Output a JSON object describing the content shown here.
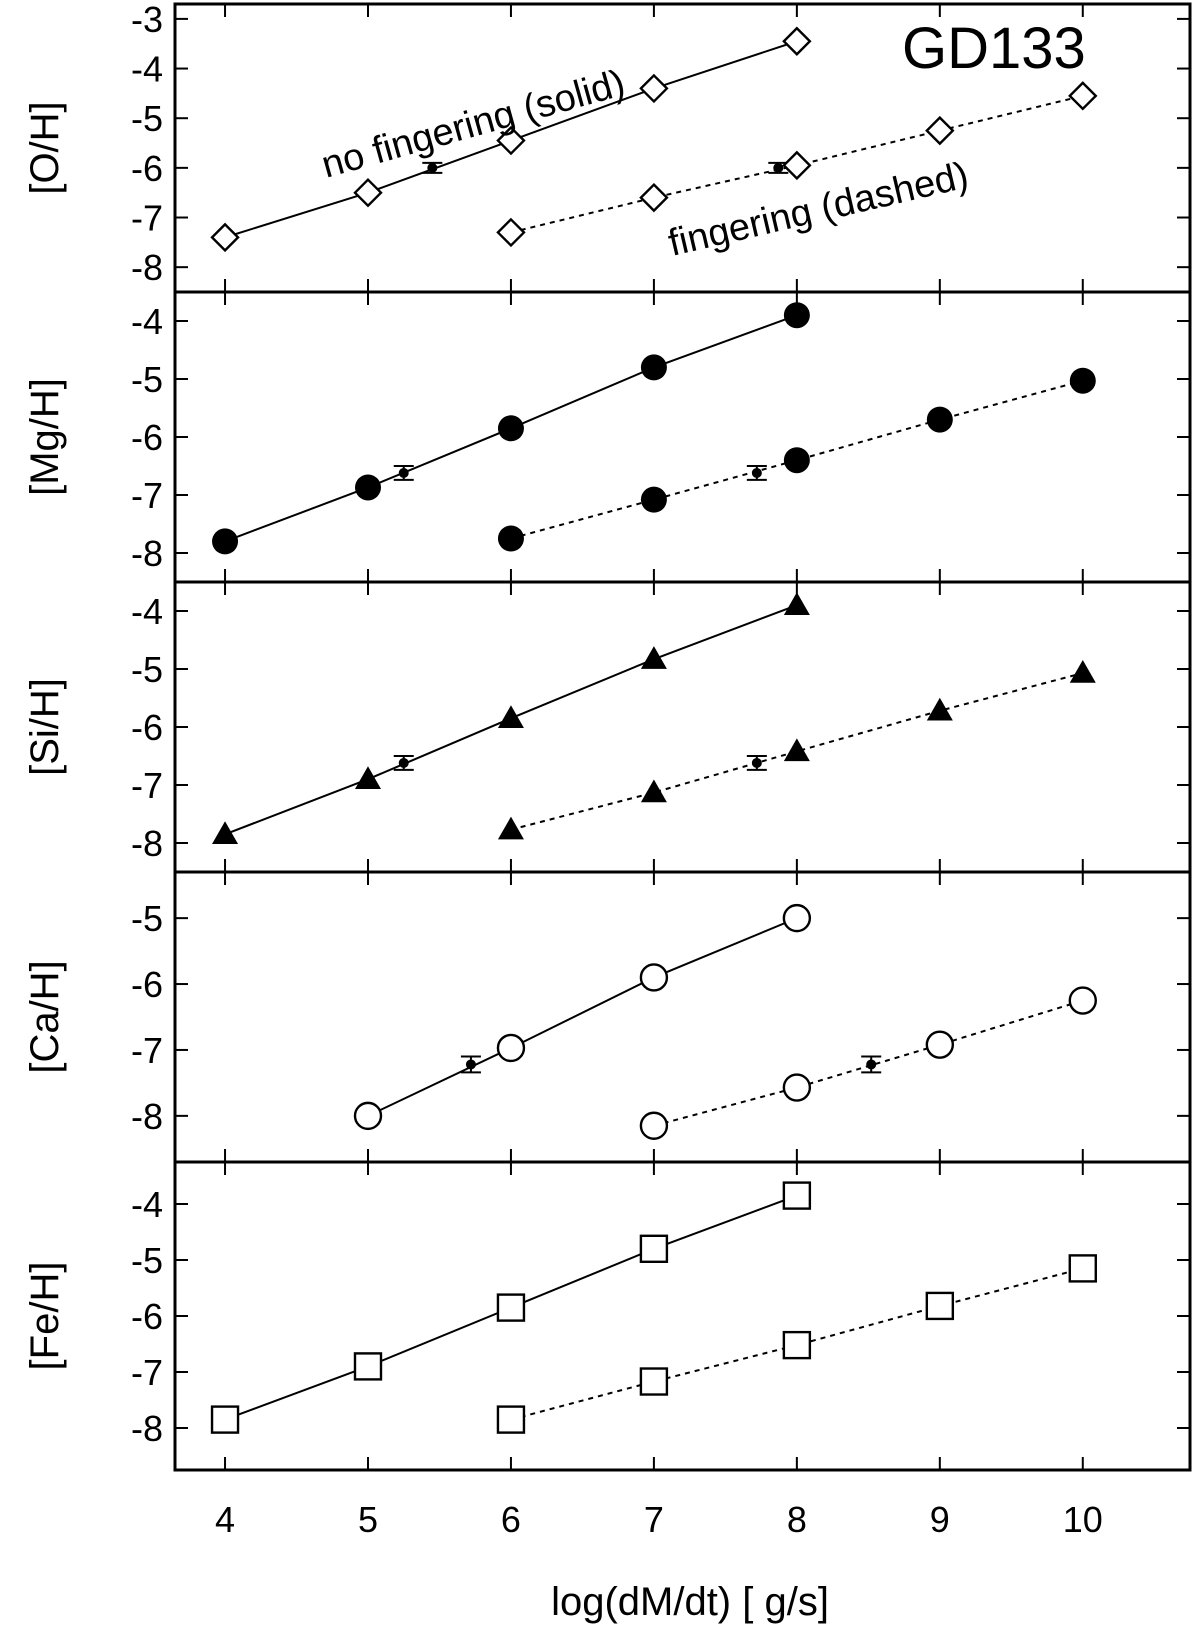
{
  "chart_data": {
    "type": "scatter",
    "title": "GD133",
    "xlabel": "log(dM/dt) [ g/s]",
    "xlim": [
      3.65,
      10.75
    ],
    "xticks": [
      "4",
      "5",
      "6",
      "7",
      "8",
      "9",
      "10"
    ],
    "xtick_values": [
      4,
      5,
      6,
      7,
      8,
      9,
      10
    ],
    "legend": "none",
    "grid": false,
    "annotations": {
      "solid": "no fingering (solid)",
      "dashed": "fingering (dashed)"
    },
    "panels": [
      {
        "ylabel": "[O/H]",
        "ylim": [
          -8.5,
          -2.7
        ],
        "yticks": [
          "-8",
          "-7",
          "-6",
          "-5",
          "-4",
          "-3"
        ],
        "ytick_values": [
          -8,
          -7,
          -6,
          -5,
          -4,
          -3
        ],
        "marker": "diamond-open",
        "series": [
          {
            "line": "solid",
            "x": [
              4,
              5,
              6,
              7,
              8
            ],
            "y": [
              -7.4,
              -6.5,
              -5.45,
              -4.4,
              -3.45
            ]
          },
          {
            "line": "dashed",
            "x": [
              6,
              7,
              8,
              9,
              10
            ],
            "y": [
              -7.3,
              -6.6,
              -5.95,
              -5.25,
              -4.55
            ]
          }
        ],
        "observed": [
          {
            "x": 5.45,
            "y": -6.0,
            "yerr": 0.1,
            "xerr": 0.07
          },
          {
            "x": 7.87,
            "y": -6.0,
            "yerr": 0.1,
            "xerr": 0.07
          }
        ]
      },
      {
        "ylabel": "[Mg/H]",
        "ylim": [
          -8.5,
          -3.5
        ],
        "yticks": [
          "-8",
          "-7",
          "-6",
          "-5",
          "-4"
        ],
        "ytick_values": [
          -8,
          -7,
          -6,
          -5,
          -4
        ],
        "marker": "circle-filled",
        "series": [
          {
            "line": "solid",
            "x": [
              4,
              5,
              6,
              7,
              8
            ],
            "y": [
              -7.8,
              -6.87,
              -5.85,
              -4.8,
              -3.9
            ]
          },
          {
            "line": "dashed",
            "x": [
              6,
              7,
              8,
              9,
              10
            ],
            "y": [
              -7.75,
              -7.08,
              -6.4,
              -5.7,
              -5.03
            ]
          }
        ],
        "observed": [
          {
            "x": 5.25,
            "y": -6.62,
            "yerr": 0.12,
            "xerr": 0.07
          },
          {
            "x": 7.72,
            "y": -6.62,
            "yerr": 0.12,
            "xerr": 0.07
          }
        ]
      },
      {
        "ylabel": "[Si/H]",
        "ylim": [
          -8.5,
          -3.5
        ],
        "yticks": [
          "-8",
          "-7",
          "-6",
          "-5",
          "-4"
        ],
        "ytick_values": [
          -8,
          -7,
          -6,
          -5,
          -4
        ],
        "marker": "triangle-filled",
        "series": [
          {
            "line": "solid",
            "x": [
              4,
              5,
              6,
              7,
              8
            ],
            "y": [
              -7.85,
              -6.9,
              -5.85,
              -4.83,
              -3.9
            ]
          },
          {
            "line": "dashed",
            "x": [
              6,
              7,
              8,
              9,
              10
            ],
            "y": [
              -7.77,
              -7.13,
              -6.42,
              -5.72,
              -5.07
            ]
          }
        ],
        "observed": [
          {
            "x": 5.25,
            "y": -6.62,
            "yerr": 0.12,
            "xerr": 0.07
          },
          {
            "x": 7.72,
            "y": -6.62,
            "yerr": 0.12,
            "xerr": 0.07
          }
        ]
      },
      {
        "ylabel": "[Ca/H]",
        "ylim": [
          -8.7,
          -4.3
        ],
        "yticks": [
          "-8",
          "-7",
          "-6",
          "-5"
        ],
        "ytick_values": [
          -8,
          -7,
          -6,
          -5
        ],
        "marker": "circle-open",
        "series": [
          {
            "line": "solid",
            "x": [
              5,
              6,
              7,
              8
            ],
            "y": [
              -8.0,
              -6.97,
              -5.9,
              -5.0
            ]
          },
          {
            "line": "dashed",
            "x": [
              7,
              8,
              9,
              10
            ],
            "y": [
              -8.15,
              -7.57,
              -6.92,
              -6.25
            ]
          }
        ],
        "observed": [
          {
            "x": 5.72,
            "y": -7.22,
            "yerr": 0.12,
            "xerr": 0.07
          },
          {
            "x": 8.52,
            "y": -7.22,
            "yerr": 0.12,
            "xerr": 0.07
          }
        ]
      },
      {
        "ylabel": "[Fe/H]",
        "ylim": [
          -8.75,
          -3.25
        ],
        "yticks": [
          "-8",
          "-7",
          "-6",
          "-5",
          "-4"
        ],
        "ytick_values": [
          -8,
          -7,
          -6,
          -5,
          -4
        ],
        "marker": "square-open",
        "series": [
          {
            "line": "solid",
            "x": [
              4,
              5,
              6,
              7,
              8
            ],
            "y": [
              -7.85,
              -6.9,
              -5.85,
              -4.8,
              -3.85
            ]
          },
          {
            "line": "dashed",
            "x": [
              6,
              7,
              8,
              9,
              10
            ],
            "y": [
              -7.85,
              -7.17,
              -6.52,
              -5.82,
              -5.15
            ]
          }
        ],
        "observed": []
      }
    ]
  }
}
